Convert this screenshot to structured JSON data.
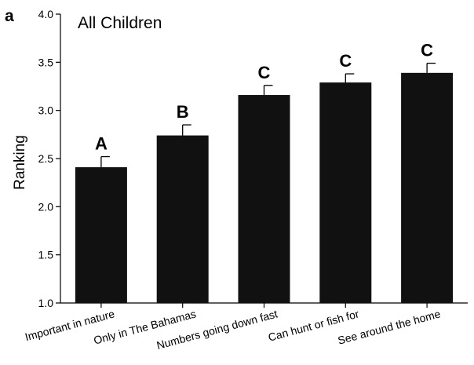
{
  "chart_data": {
    "type": "bar",
    "panel_label": "a",
    "title": "All Children",
    "ylabel": "Ranking",
    "xlabel": "",
    "ylim": [
      1.0,
      4.0
    ],
    "yticks": [
      "1.0",
      "1.5",
      "2.0",
      "2.5",
      "3.0",
      "3.5",
      "4.0"
    ],
    "grid": false,
    "bar_color": "#111111",
    "categories": [
      "Important in nature",
      "Only in The Bahamas",
      "Numbers going down fast",
      "Can hunt or fish for",
      "See around the home"
    ],
    "values": [
      2.41,
      2.74,
      3.16,
      3.29,
      3.39
    ],
    "errors": [
      0.11,
      0.11,
      0.1,
      0.09,
      0.1
    ],
    "group_letters": [
      "A",
      "B",
      "C",
      "C",
      "C"
    ]
  }
}
